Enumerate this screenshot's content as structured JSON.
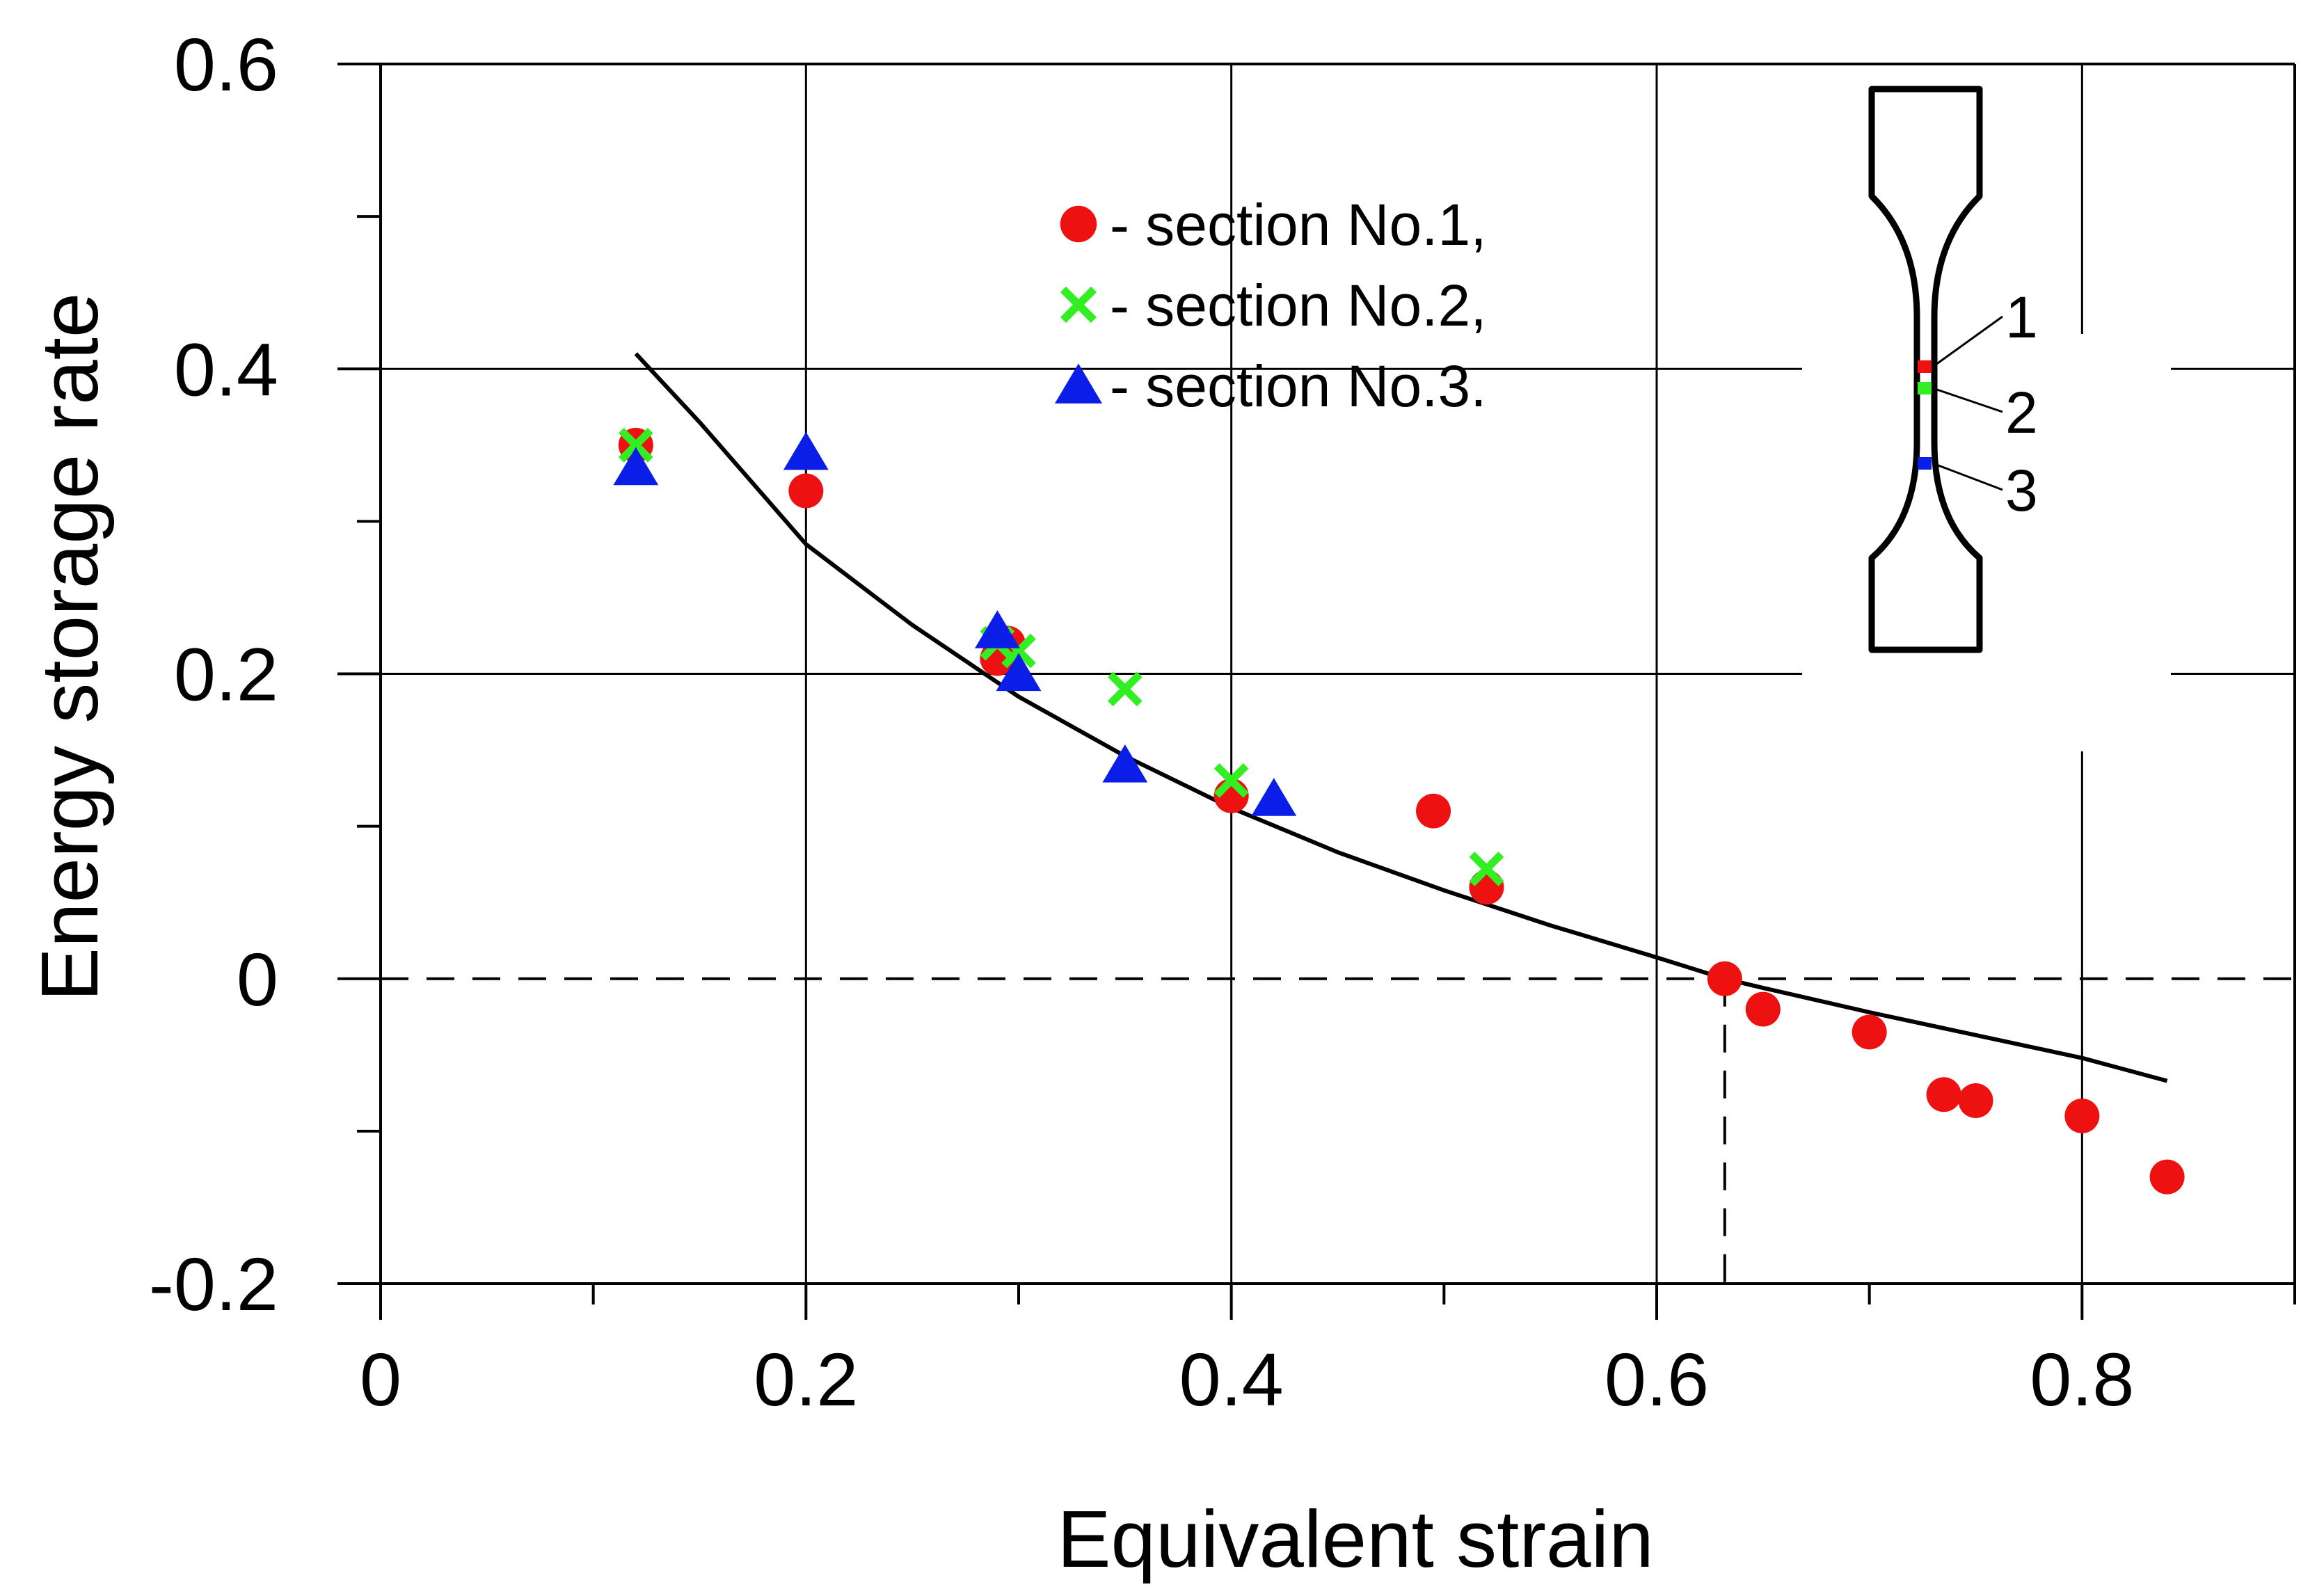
{
  "chart_data": {
    "type": "scatter",
    "title": "",
    "xlabel": "Equivalent strain",
    "ylabel": "Energy storage rate",
    "xlim": [
      0,
      0.9
    ],
    "ylim": [
      -0.2,
      0.6
    ],
    "x_ticks": [
      0,
      0.2,
      0.4,
      0.6,
      0.8
    ],
    "x_tick_labels": [
      "0",
      "0.2",
      "0.4",
      "0.6",
      "0.8"
    ],
    "y_ticks": [
      -0.2,
      0,
      0.2,
      0.4,
      0.6
    ],
    "y_tick_labels": [
      "-0.2",
      "0",
      "0.2",
      "0.4",
      "0.6"
    ],
    "x_minor_ticks": [
      0.1,
      0.3,
      0.5,
      0.7,
      0.9
    ],
    "y_minor_ticks": [
      -0.1,
      0.1,
      0.3,
      0.5
    ],
    "grid": true,
    "legend_position": "top-center",
    "series": [
      {
        "name": "- section No.1,",
        "marker": "circle",
        "color": "#ee1111",
        "points": [
          [
            0.12,
            0.35
          ],
          [
            0.2,
            0.32
          ],
          [
            0.29,
            0.21
          ],
          [
            0.295,
            0.22
          ],
          [
            0.4,
            0.12
          ],
          [
            0.495,
            0.11
          ],
          [
            0.52,
            0.06
          ],
          [
            0.632,
            0.0
          ],
          [
            0.65,
            -0.02
          ],
          [
            0.7,
            -0.035
          ],
          [
            0.735,
            -0.076
          ],
          [
            0.75,
            -0.08
          ],
          [
            0.8,
            -0.09
          ],
          [
            0.84,
            -0.13
          ]
        ]
      },
      {
        "name": "- section No.2,",
        "marker": "cross",
        "color": "#33ee22",
        "points": [
          [
            0.12,
            0.35
          ],
          [
            0.29,
            0.22
          ],
          [
            0.3,
            0.215
          ],
          [
            0.35,
            0.19
          ],
          [
            0.4,
            0.13
          ],
          [
            0.52,
            0.072
          ]
        ]
      },
      {
        "name": "- section No.3.",
        "marker": "triangle",
        "color": "#0a1ee8",
        "points": [
          [
            0.12,
            0.335
          ],
          [
            0.2,
            0.345
          ],
          [
            0.29,
            0.228
          ],
          [
            0.3,
            0.2
          ],
          [
            0.35,
            0.14
          ],
          [
            0.42,
            0.118
          ]
        ]
      }
    ],
    "fit_curve": {
      "color": "#000000",
      "x_range": [
        0.12,
        0.84
      ],
      "points": [
        [
          0.12,
          0.41
        ],
        [
          0.15,
          0.365
        ],
        [
          0.2,
          0.285
        ],
        [
          0.25,
          0.232
        ],
        [
          0.3,
          0.185
        ],
        [
          0.35,
          0.146
        ],
        [
          0.4,
          0.112
        ],
        [
          0.45,
          0.083
        ],
        [
          0.5,
          0.058
        ],
        [
          0.55,
          0.035
        ],
        [
          0.6,
          0.014
        ],
        [
          0.632,
          0.0
        ],
        [
          0.65,
          -0.006
        ],
        [
          0.7,
          -0.022
        ],
        [
          0.75,
          -0.037
        ],
        [
          0.8,
          -0.052
        ],
        [
          0.84,
          -0.067
        ]
      ]
    },
    "reference_lines": {
      "zero_y": 0,
      "strain_at_zero": 0.632
    },
    "inset": {
      "description_labels": [
        "1",
        "2",
        "3"
      ],
      "marker_colors": [
        "#ee1111",
        "#33ee22",
        "#0a1ee8"
      ]
    }
  }
}
